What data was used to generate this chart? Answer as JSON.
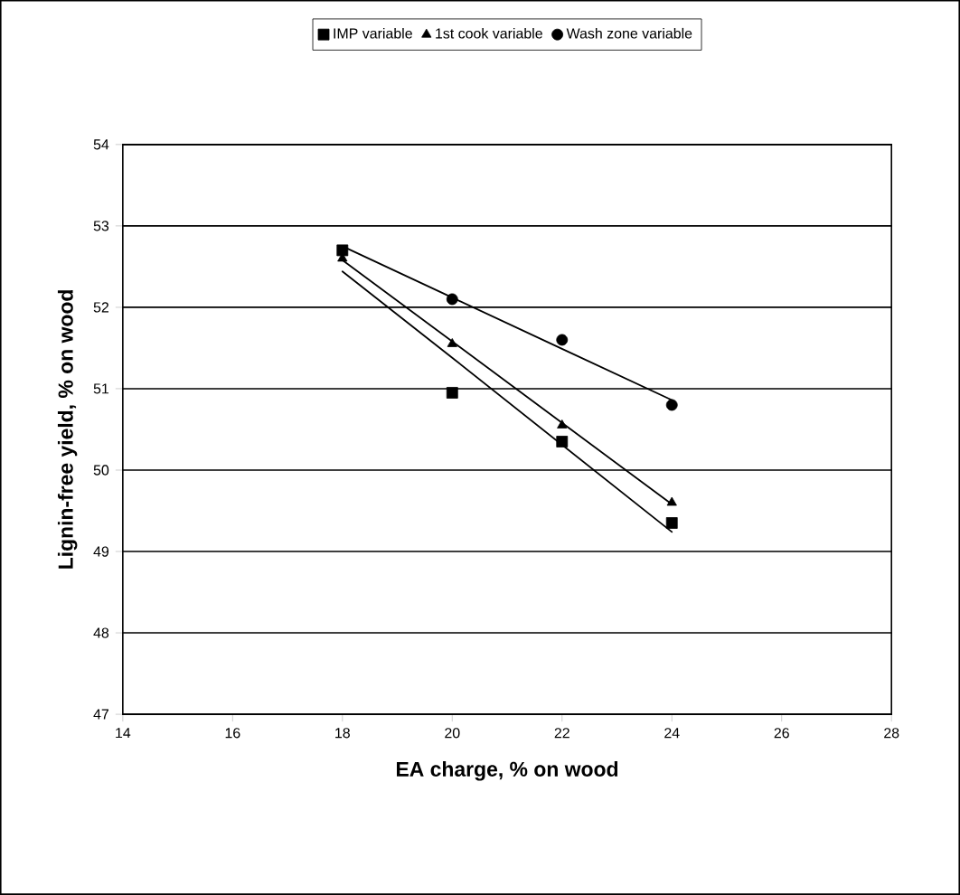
{
  "chart_data": {
    "type": "scatter",
    "xlabel": "EA charge, % on wood",
    "ylabel": "Lignin-free yield, % on wood",
    "x": [
      18,
      20,
      22,
      24
    ],
    "series": [
      {
        "name": "IMP variable",
        "color": "#000000",
        "marker": "square",
        "values": [
          52.7,
          50.95,
          50.35,
          49.35
        ]
      },
      {
        "name": "1st cook variable",
        "color": "#000000",
        "marker": "triangle",
        "values": [
          52.6,
          51.55,
          50.55,
          49.6
        ]
      },
      {
        "name": "Wash zone variable",
        "color": "#000000",
        "marker": "circle",
        "values": [
          null,
          52.1,
          51.6,
          50.8
        ]
      },
      {
        "type": "line",
        "color": "#000000",
        "marker": "none",
        "values": [
          52.44,
          51.38,
          50.31,
          49.24
        ]
      },
      {
        "type": "line",
        "color": "#000000",
        "marker": "none",
        "values": [
          52.58,
          51.58,
          50.58,
          49.58
        ]
      },
      {
        "type": "line",
        "color": "#000000",
        "marker": "none",
        "values": [
          52.75,
          52.12,
          51.49,
          50.86
        ]
      }
    ],
    "xlim": [
      14,
      28
    ],
    "xticks": [
      14,
      16,
      18,
      20,
      22,
      24,
      26,
      28
    ],
    "ylim": [
      47,
      54
    ],
    "yticks": [
      47,
      48,
      49,
      50,
      51,
      52,
      53,
      54
    ],
    "grid": "y",
    "legend": "top"
  }
}
